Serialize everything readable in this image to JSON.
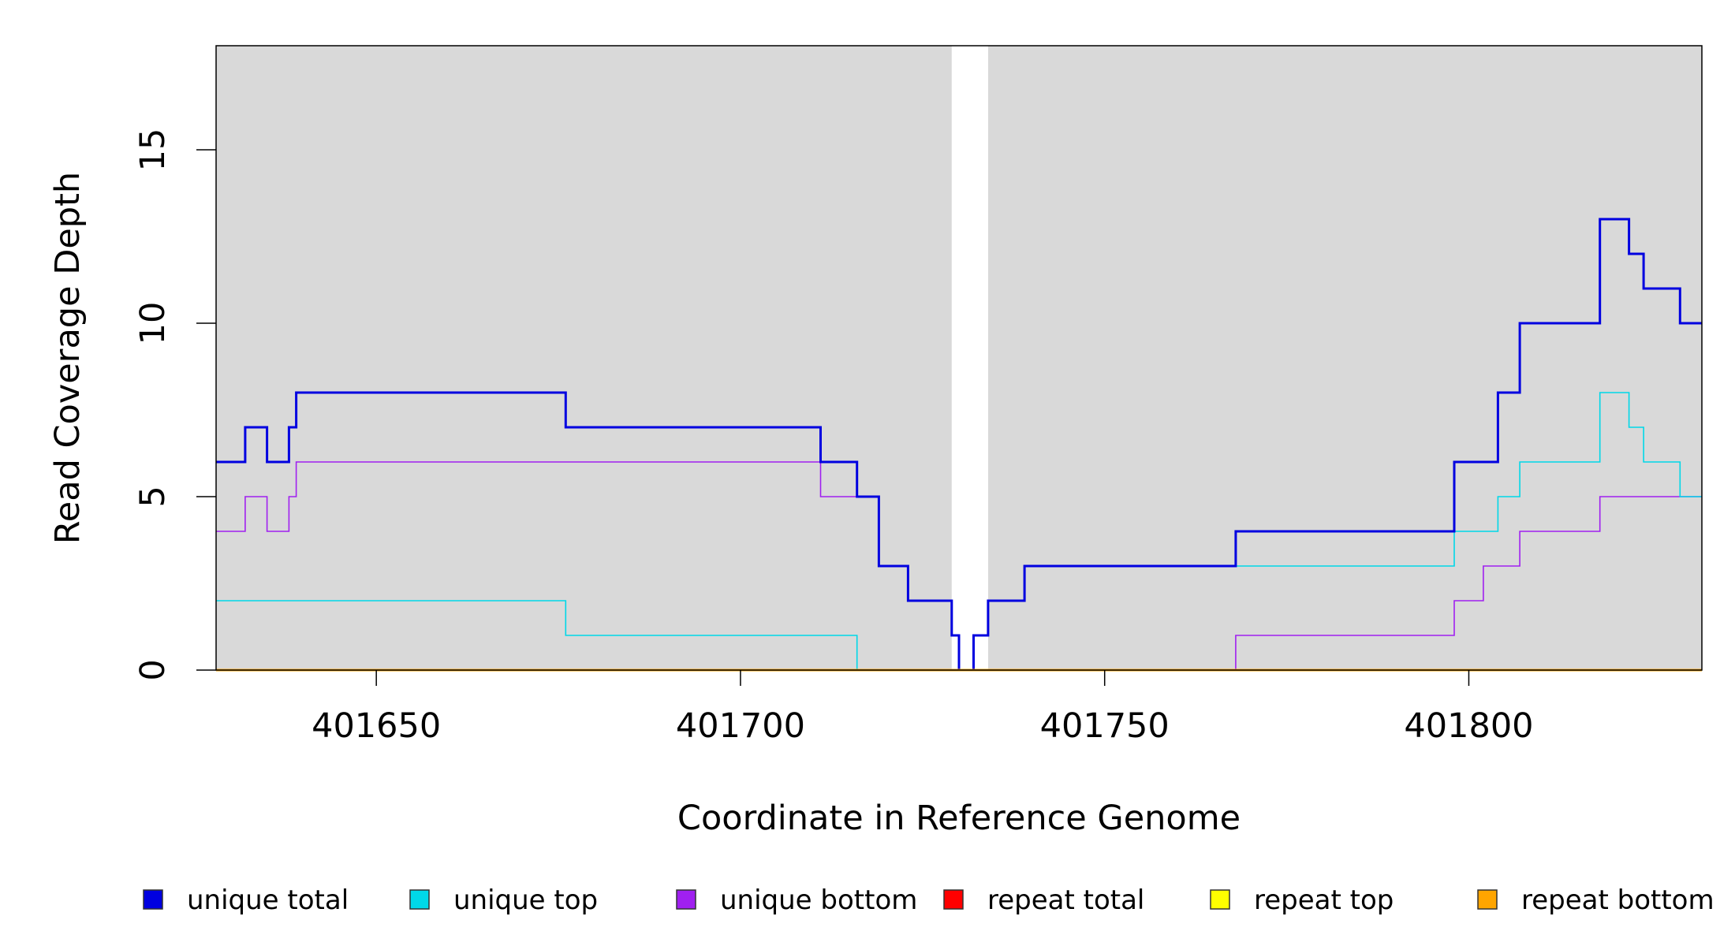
{
  "chart_data": {
    "type": "line",
    "title": "",
    "xlabel": "Coordinate in Reference Genome",
    "ylabel": "Read Coverage Depth",
    "xlim": [
      401628,
      401832
    ],
    "ylim": [
      0,
      18
    ],
    "x_ticks": [
      401650,
      401700,
      401750,
      401800
    ],
    "y_ticks": [
      0,
      5,
      10,
      15
    ],
    "background_color": "#d9d9d9",
    "gap_region": [
      401729,
      401734
    ],
    "legend_position": "bottom",
    "series": [
      {
        "name": "unique total",
        "color": "#0000e0",
        "steps": [
          [
            401628,
            6
          ],
          [
            401632,
            7
          ],
          [
            401635,
            6
          ],
          [
            401638,
            7
          ],
          [
            401639,
            8
          ],
          [
            401676,
            7
          ],
          [
            401711,
            6
          ],
          [
            401716,
            5
          ],
          [
            401719,
            3
          ],
          [
            401723,
            2
          ],
          [
            401729,
            1
          ],
          [
            401730,
            0
          ],
          [
            401732,
            1
          ],
          [
            401734,
            2
          ],
          [
            401739,
            3
          ],
          [
            401768,
            4
          ],
          [
            401798,
            6
          ],
          [
            401804,
            8
          ],
          [
            401807,
            10
          ],
          [
            401818,
            13
          ],
          [
            401822,
            12
          ],
          [
            401824,
            11
          ],
          [
            401829,
            10
          ],
          [
            401832,
            10
          ]
        ]
      },
      {
        "name": "unique top",
        "color": "#00d8e8",
        "steps": [
          [
            401628,
            2
          ],
          [
            401676,
            1
          ],
          [
            401716,
            0
          ],
          [
            401730,
            0
          ],
          [
            401732,
            1
          ],
          [
            401734,
            2
          ],
          [
            401739,
            3
          ],
          [
            401798,
            4
          ],
          [
            401804,
            5
          ],
          [
            401807,
            6
          ],
          [
            401818,
            8
          ],
          [
            401822,
            7
          ],
          [
            401824,
            6
          ],
          [
            401829,
            5
          ],
          [
            401832,
            5
          ]
        ]
      },
      {
        "name": "unique bottom",
        "color": "#a020f0",
        "steps": [
          [
            401628,
            4
          ],
          [
            401632,
            5
          ],
          [
            401635,
            4
          ],
          [
            401638,
            5
          ],
          [
            401639,
            6
          ],
          [
            401711,
            5
          ],
          [
            401716,
            5
          ],
          [
            401719,
            3
          ],
          [
            401723,
            2
          ],
          [
            401729,
            1
          ],
          [
            401730,
            0
          ],
          [
            401768,
            1
          ],
          [
            401798,
            2
          ],
          [
            401802,
            3
          ],
          [
            401807,
            4
          ],
          [
            401818,
            5
          ],
          [
            401832,
            5
          ]
        ]
      },
      {
        "name": "repeat total",
        "color": "#ff0000",
        "steps": [
          [
            401628,
            0
          ],
          [
            401832,
            0
          ]
        ]
      },
      {
        "name": "repeat top",
        "color": "#ffff00",
        "steps": [
          [
            401628,
            0
          ],
          [
            401832,
            0
          ]
        ]
      },
      {
        "name": "repeat bottom",
        "color": "#ffa500",
        "steps": [
          [
            401628,
            0
          ],
          [
            401832,
            0
          ]
        ]
      }
    ]
  }
}
